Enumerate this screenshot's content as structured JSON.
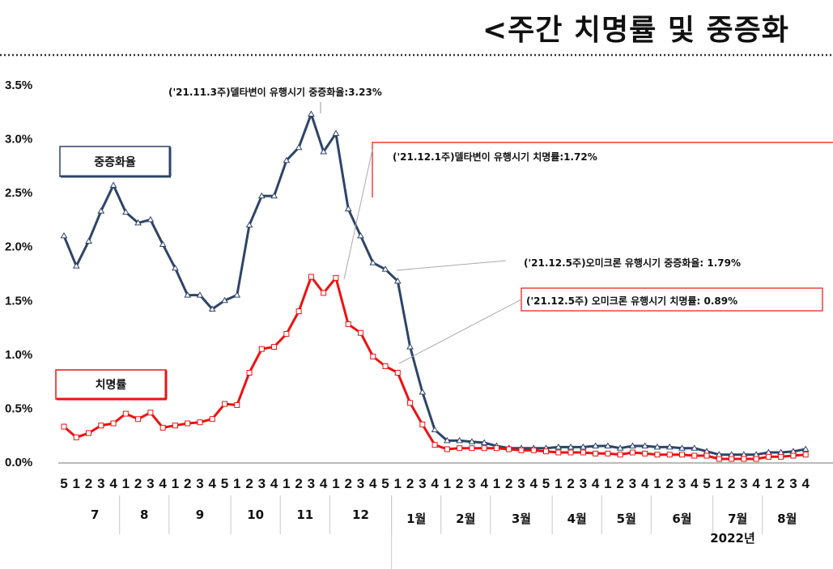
{
  "page": {
    "title": "<주간 치명률 및 중증화"
  },
  "chart_data": {
    "type": "line",
    "y_ticks": [
      "0.0%",
      "0.5%",
      "1.0%",
      "1.5%",
      "2.0%",
      "2.5%",
      "3.0%",
      "3.5%"
    ],
    "ylim": [
      0,
      3.5
    ],
    "grid": false,
    "week_labels": [
      "5",
      "1",
      "2",
      "3",
      "4",
      "1",
      "2",
      "3",
      "4",
      "1",
      "2",
      "3",
      "4",
      "5",
      "1",
      "2",
      "3",
      "4",
      "1",
      "2",
      "3",
      "4",
      "1",
      "2",
      "3",
      "4",
      "5",
      "1",
      "2",
      "3",
      "4",
      "1",
      "2",
      "3",
      "4",
      "1",
      "2",
      "3",
      "4",
      "5",
      "1",
      "2",
      "3",
      "4",
      "1",
      "2",
      "3",
      "4",
      "1",
      "2",
      "3",
      "4",
      "5",
      "1",
      "2",
      "3",
      "4",
      "1",
      "2",
      "3",
      "4"
    ],
    "month_labels": [
      "7",
      "8",
      "9",
      "10",
      "11",
      "12",
      "1월",
      "2월",
      "3월",
      "4월",
      "5월",
      "6월",
      "7월",
      "8월"
    ],
    "year_label": "2022년",
    "series": [
      {
        "name": "중증화율",
        "color": "#2e4468",
        "marker": "triangle",
        "values": [
          2.1,
          1.82,
          2.05,
          2.33,
          2.57,
          2.32,
          2.22,
          2.25,
          2.02,
          1.8,
          1.55,
          1.55,
          1.42,
          1.5,
          1.55,
          2.2,
          2.47,
          2.47,
          2.8,
          2.92,
          3.23,
          2.88,
          3.05,
          2.35,
          2.1,
          1.85,
          1.79,
          1.68,
          1.07,
          0.65,
          0.3,
          0.2,
          0.2,
          0.19,
          0.18,
          0.15,
          0.13,
          0.13,
          0.13,
          0.13,
          0.14,
          0.14,
          0.14,
          0.15,
          0.15,
          0.13,
          0.15,
          0.15,
          0.14,
          0.14,
          0.13,
          0.13,
          0.1,
          0.07,
          0.07,
          0.07,
          0.07,
          0.09,
          0.09,
          0.1,
          0.12
        ]
      },
      {
        "name": "치명률",
        "color": "#ee1111",
        "marker": "square",
        "values": [
          0.33,
          0.23,
          0.27,
          0.34,
          0.36,
          0.45,
          0.4,
          0.46,
          0.32,
          0.34,
          0.36,
          0.37,
          0.4,
          0.54,
          0.53,
          0.83,
          1.05,
          1.07,
          1.19,
          1.4,
          1.72,
          1.57,
          1.71,
          1.28,
          1.2,
          0.98,
          0.89,
          0.83,
          0.55,
          0.35,
          0.16,
          0.12,
          0.13,
          0.13,
          0.13,
          0.13,
          0.12,
          0.11,
          0.11,
          0.1,
          0.09,
          0.09,
          0.09,
          0.08,
          0.08,
          0.07,
          0.09,
          0.08,
          0.07,
          0.07,
          0.07,
          0.06,
          0.06,
          0.03,
          0.03,
          0.03,
          0.03,
          0.05,
          0.05,
          0.06,
          0.07
        ]
      }
    ],
    "legend": [
      {
        "label": "중증화율",
        "color": "#2e4468"
      },
      {
        "label": "치명률",
        "color": "#ee1111"
      }
    ],
    "annotations": [
      {
        "text": "('21.11.3주)델타변이 유행시기 중증화율:3.23%",
        "boxed": false
      },
      {
        "text": "('21.12.1주)델타변이 유행시기 치명률:1.72%",
        "boxed": true,
        "box_color": "#ee1111"
      },
      {
        "text": "('21.12.5주)오미크론 유행시기 중증화율: 1.79%",
        "boxed": false
      },
      {
        "text": "('21.12.5주) 오미크론 유행시기 치명률: 0.89%",
        "boxed": true,
        "box_color": "#ee1111"
      }
    ]
  }
}
